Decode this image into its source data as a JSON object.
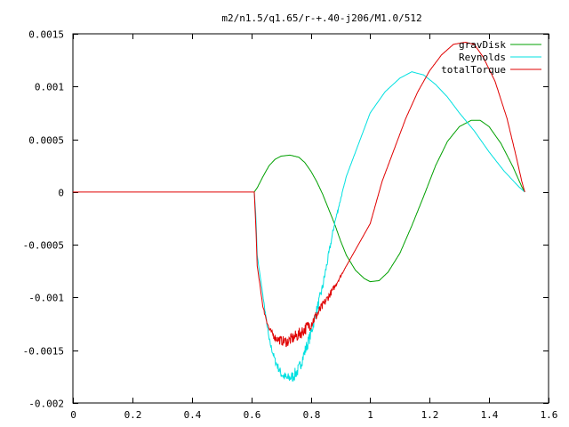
{
  "chart_data": {
    "type": "line",
    "title": "m2/n1.5/q1.65/r-+.40-j206/M1.0/512",
    "xlabel": "",
    "ylabel": "",
    "xlim": [
      0,
      1.6
    ],
    "ylim": [
      -0.002,
      0.0015
    ],
    "x_ticks": [
      0,
      0.2,
      0.4,
      0.6,
      0.8,
      1,
      1.2,
      1.4,
      1.6
    ],
    "x_tick_labels": [
      "0",
      "0.2",
      "0.4",
      "0.6",
      "0.8",
      "1",
      "1.2",
      "1.4",
      "1.6"
    ],
    "y_ticks": [
      -0.002,
      -0.0015,
      -0.001,
      -0.0005,
      0,
      0.0005,
      0.001,
      0.0015
    ],
    "y_tick_labels": [
      "-0.002",
      "-0.0015",
      "-0.001",
      "-0.0005",
      "0",
      "0.0005",
      "0.001",
      "0.0015"
    ],
    "grid": false,
    "legend_position": "top-right",
    "series": [
      {
        "name": "gravDisk",
        "color": "#00a000",
        "noisy": false,
        "points": [
          [
            0.61,
            0
          ],
          [
            0.62,
            4e-05
          ],
          [
            0.64,
            0.00015
          ],
          [
            0.66,
            0.00025
          ],
          [
            0.68,
            0.00031
          ],
          [
            0.7,
            0.00034
          ],
          [
            0.73,
            0.00035
          ],
          [
            0.76,
            0.00033
          ],
          [
            0.78,
            0.00028
          ],
          [
            0.8,
            0.0002
          ],
          [
            0.82,
            0.0001
          ],
          [
            0.84,
            -2e-05
          ],
          [
            0.86,
            -0.00016
          ],
          [
            0.88,
            -0.0003
          ],
          [
            0.9,
            -0.00046
          ],
          [
            0.92,
            -0.0006
          ],
          [
            0.95,
            -0.00074
          ],
          [
            0.98,
            -0.00082
          ],
          [
            1.0,
            -0.00085
          ],
          [
            1.03,
            -0.00084
          ],
          [
            1.06,
            -0.00076
          ],
          [
            1.1,
            -0.00058
          ],
          [
            1.14,
            -0.00032
          ],
          [
            1.18,
            -4e-05
          ],
          [
            1.22,
            0.00025
          ],
          [
            1.26,
            0.00048
          ],
          [
            1.3,
            0.00062
          ],
          [
            1.34,
            0.00068
          ],
          [
            1.37,
            0.00068
          ],
          [
            1.4,
            0.00062
          ],
          [
            1.44,
            0.00046
          ],
          [
            1.48,
            0.00024
          ],
          [
            1.51,
            5e-05
          ],
          [
            1.52,
            0
          ]
        ]
      },
      {
        "name": "Reynolds",
        "color": "#00e0e0",
        "noisy": true,
        "points": [
          [
            0.61,
            0
          ],
          [
            0.615,
            -0.0002
          ],
          [
            0.62,
            -0.0006
          ],
          [
            0.64,
            -0.001
          ],
          [
            0.66,
            -0.0014
          ],
          [
            0.68,
            -0.0016
          ],
          [
            0.7,
            -0.00172
          ],
          [
            0.72,
            -0.00177
          ],
          [
            0.74,
            -0.00175
          ],
          [
            0.76,
            -0.00168
          ],
          [
            0.8,
            -0.00135
          ],
          [
            0.84,
            -0.0009
          ],
          [
            0.88,
            -0.0003
          ],
          [
            0.92,
            0.00015
          ],
          [
            0.96,
            0.00045
          ],
          [
            1.0,
            0.00075
          ],
          [
            1.05,
            0.00095
          ],
          [
            1.1,
            0.00108
          ],
          [
            1.14,
            0.00114
          ],
          [
            1.18,
            0.00111
          ],
          [
            1.22,
            0.00102
          ],
          [
            1.26,
            0.0009
          ],
          [
            1.3,
            0.00075
          ],
          [
            1.35,
            0.00058
          ],
          [
            1.4,
            0.00038
          ],
          [
            1.45,
            0.0002
          ],
          [
            1.5,
            5e-05
          ],
          [
            1.52,
            0
          ]
        ]
      },
      {
        "name": "totalTorque",
        "color": "#e00000",
        "noisy": true,
        "points": [
          [
            0,
            0
          ],
          [
            0.61,
            0
          ],
          [
            0.615,
            -0.0003
          ],
          [
            0.62,
            -0.0007
          ],
          [
            0.64,
            -0.0011
          ],
          [
            0.66,
            -0.0013
          ],
          [
            0.68,
            -0.00138
          ],
          [
            0.7,
            -0.00141
          ],
          [
            0.72,
            -0.00142
          ],
          [
            0.76,
            -0.00135
          ],
          [
            0.8,
            -0.00125
          ],
          [
            0.84,
            -0.00108
          ],
          [
            0.88,
            -0.0009
          ],
          [
            0.92,
            -0.0007
          ],
          [
            0.96,
            -0.0005
          ],
          [
            1.0,
            -0.0003
          ],
          [
            1.04,
            0.0001
          ],
          [
            1.08,
            0.0004
          ],
          [
            1.12,
            0.0007
          ],
          [
            1.16,
            0.00095
          ],
          [
            1.2,
            0.00115
          ],
          [
            1.24,
            0.0013
          ],
          [
            1.28,
            0.0014
          ],
          [
            1.32,
            0.00142
          ],
          [
            1.35,
            0.0014
          ],
          [
            1.38,
            0.00128
          ],
          [
            1.42,
            0.00105
          ],
          [
            1.46,
            0.0007
          ],
          [
            1.49,
            0.00035
          ],
          [
            1.51,
            0.0001
          ],
          [
            1.52,
            0
          ]
        ]
      }
    ]
  }
}
